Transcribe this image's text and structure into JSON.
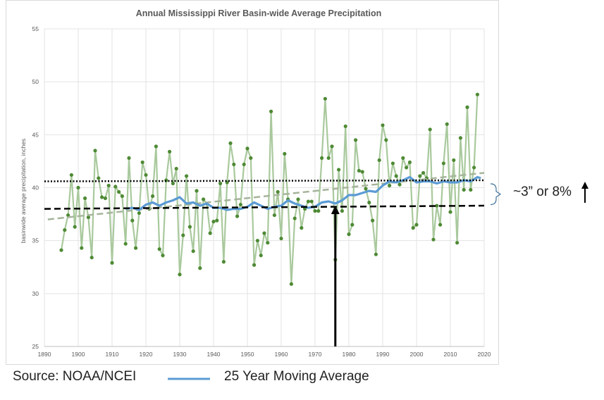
{
  "chart_data": {
    "type": "line",
    "title": "Annual Mississippi River Basin-wide Average Precipitation",
    "xlabel": "",
    "ylabel": "basinwide average precipitation, inches",
    "xlim": [
      1890,
      2020
    ],
    "ylim": [
      25,
      55
    ],
    "xticks": [
      1890,
      1900,
      1910,
      1920,
      1930,
      1940,
      1950,
      1960,
      1970,
      1980,
      1990,
      2000,
      2010,
      2020
    ],
    "yticks": [
      25,
      30,
      35,
      40,
      45,
      50,
      55
    ],
    "grid": true,
    "colors": {
      "annual_line": "#a9c99d",
      "annual_marker": "#4e8a34",
      "moving_average": "#5b9bd5",
      "trend": "#a6b49b",
      "reference": "#000000"
    },
    "series": [
      {
        "name": "",
        "kind": "annual",
        "x": [
          1895,
          1896,
          1897,
          1898,
          1899,
          1900,
          1901,
          1902,
          1903,
          1904,
          1905,
          1906,
          1907,
          1908,
          1909,
          1910,
          1911,
          1912,
          1913,
          1914,
          1915,
          1916,
          1917,
          1918,
          1919,
          1920,
          1921,
          1922,
          1923,
          1924,
          1925,
          1926,
          1927,
          1928,
          1929,
          1930,
          1931,
          1932,
          1933,
          1934,
          1935,
          1936,
          1937,
          1938,
          1939,
          1940,
          1941,
          1942,
          1943,
          1944,
          1945,
          1946,
          1947,
          1948,
          1949,
          1950,
          1951,
          1952,
          1953,
          1954,
          1955,
          1956,
          1957,
          1958,
          1959,
          1960,
          1961,
          1962,
          1963,
          1964,
          1965,
          1966,
          1967,
          1968,
          1969,
          1970,
          1971,
          1972,
          1973,
          1974,
          1975,
          1976,
          1977,
          1978,
          1979,
          1980,
          1981,
          1982,
          1983,
          1984,
          1985,
          1986,
          1987,
          1988,
          1989,
          1990,
          1991,
          1992,
          1993,
          1994,
          1995,
          1996,
          1997,
          1998,
          1999,
          2000,
          2001,
          2002,
          2003,
          2004,
          2005,
          2006,
          2007,
          2008,
          2009,
          2010,
          2011,
          2012,
          2013,
          2014,
          2015,
          2016,
          2017,
          2018
        ],
        "values": [
          34.1,
          36.0,
          37.4,
          41.2,
          36.3,
          40.0,
          34.3,
          39.0,
          37.2,
          33.4,
          43.5,
          40.9,
          39.1,
          39.0,
          40.2,
          32.9,
          40.1,
          39.6,
          39.2,
          34.7,
          42.8,
          36.9,
          34.3,
          37.6,
          42.4,
          41.2,
          38.0,
          39.2,
          43.9,
          34.2,
          33.6,
          40.7,
          43.4,
          40.4,
          41.8,
          31.8,
          35.5,
          41.1,
          36.3,
          34.0,
          39.7,
          32.4,
          38.9,
          38.5,
          35.7,
          36.8,
          36.9,
          40.4,
          33.0,
          40.5,
          44.2,
          42.2,
          37.3,
          38.4,
          42.2,
          43.7,
          42.8,
          32.7,
          35.0,
          33.6,
          35.7,
          34.8,
          47.2,
          37.4,
          39.6,
          35.2,
          43.2,
          38.9,
          30.9,
          37.1,
          38.9,
          36.2,
          38.0,
          38.7,
          38.7,
          37.8,
          37.8,
          42.8,
          48.4,
          42.8,
          43.9,
          33.2,
          41.7,
          37.8,
          45.8,
          35.6,
          36.5,
          44.5,
          41.6,
          41.5,
          39.9,
          38.6,
          36.9,
          33.7,
          42.6,
          45.9,
          44.5,
          40.2,
          42.3,
          41.1,
          40.3,
          42.8,
          41.9,
          42.4,
          36.2,
          36.5,
          41.1,
          41.4,
          40.9,
          45.5,
          35.1,
          38.3,
          36.5,
          42.3,
          46.0,
          37.7,
          42.6,
          34.8,
          44.7,
          39.8,
          47.6,
          39.8,
          41.9,
          48.8
        ]
      },
      {
        "name": "25 Year Moving Average",
        "kind": "moving_average",
        "x": [
          1914,
          1916,
          1918,
          1920,
          1922,
          1924,
          1926,
          1928,
          1930,
          1932,
          1934,
          1936,
          1938,
          1940,
          1942,
          1944,
          1946,
          1948,
          1950,
          1952,
          1954,
          1956,
          1958,
          1960,
          1962,
          1964,
          1966,
          1968,
          1970,
          1972,
          1974,
          1976,
          1978,
          1980,
          1982,
          1984,
          1986,
          1988,
          1990,
          1992,
          1994,
          1996,
          1998,
          2000,
          2002,
          2004,
          2006,
          2008,
          2010,
          2012,
          2014,
          2016,
          2018,
          2019
        ],
        "values": [
          38.0,
          38.1,
          37.9,
          38.4,
          38.6,
          38.3,
          38.6,
          38.8,
          39.1,
          38.5,
          38.6,
          38.3,
          38.5,
          38.1,
          38.1,
          37.9,
          38.0,
          38.0,
          38.2,
          38.6,
          38.3,
          38.0,
          38.2,
          38.3,
          38.8,
          38.5,
          38.3,
          38.1,
          38.2,
          38.6,
          38.7,
          38.5,
          38.8,
          39.3,
          39.3,
          39.5,
          39.7,
          39.6,
          40.2,
          40.6,
          40.5,
          40.7,
          41.0,
          40.5,
          40.6,
          40.6,
          40.4,
          40.6,
          40.5,
          40.5,
          40.7,
          40.6,
          41.0,
          40.9
        ]
      }
    ],
    "lines": [
      {
        "kind": "trend",
        "style": "dashed",
        "x": [
          1891,
          2020
        ],
        "y": [
          37.0,
          41.4
        ]
      },
      {
        "kind": "upper-reference",
        "style": "dotted",
        "x": [
          1890,
          2020
        ],
        "y": [
          40.6,
          40.7
        ]
      },
      {
        "kind": "lower-reference",
        "style": "dashed",
        "x": [
          1890,
          2020
        ],
        "y": [
          38.0,
          38.3
        ]
      },
      {
        "kind": "vertical-arrow",
        "x": 1976,
        "y": [
          25,
          38.3
        ]
      }
    ],
    "annotation": {
      "text": "~3” or 8%",
      "range": [
        38.2,
        40.7
      ]
    }
  },
  "footer": {
    "source": "Source: NOAA/NCEI",
    "legend_label": "25 Year Moving Average"
  }
}
